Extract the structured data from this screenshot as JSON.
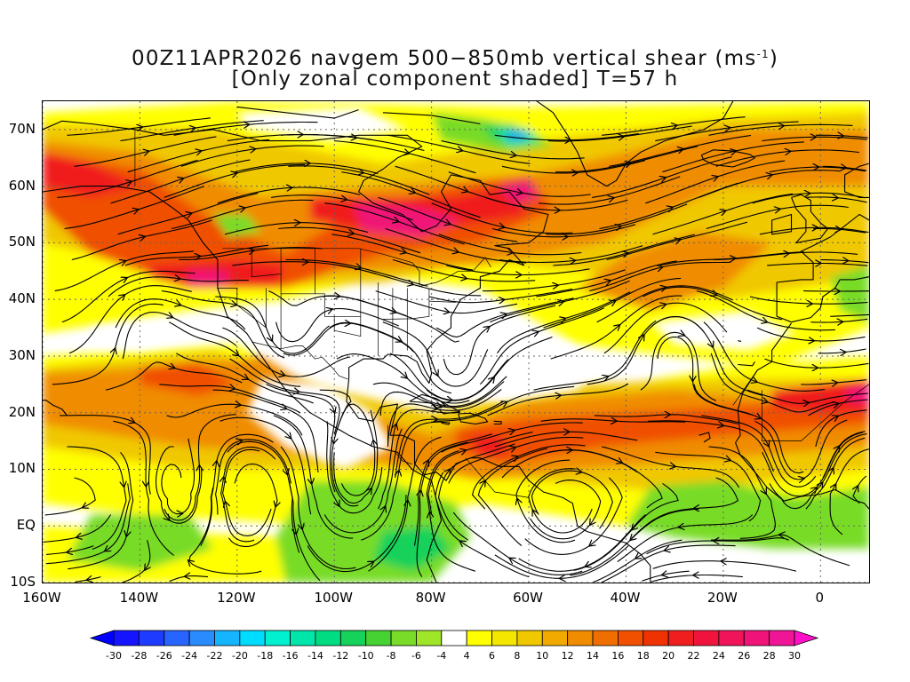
{
  "title": {
    "line1_prefix": "00Z11APR2026 navgem 500−850mb vertical shear (ms",
    "line1_sup": "-1",
    "line1_suffix": ")",
    "line2": "[Only zonal component shaded] T=57 h"
  },
  "axes": {
    "lat_labels": [
      {
        "text": "70N",
        "lat": 70
      },
      {
        "text": "60N",
        "lat": 60
      },
      {
        "text": "50N",
        "lat": 50
      },
      {
        "text": "40N",
        "lat": 40
      },
      {
        "text": "30N",
        "lat": 30
      },
      {
        "text": "20N",
        "lat": 20
      },
      {
        "text": "10N",
        "lat": 10
      },
      {
        "text": "EQ",
        "lat": 0
      },
      {
        "text": "10S",
        "lat": -10
      }
    ],
    "lon_labels": [
      {
        "text": "160W",
        "lon": -160
      },
      {
        "text": "140W",
        "lon": -140
      },
      {
        "text": "120W",
        "lon": -120
      },
      {
        "text": "100W",
        "lon": -100
      },
      {
        "text": "80W",
        "lon": -80
      },
      {
        "text": "60W",
        "lon": -60
      },
      {
        "text": "40W",
        "lon": -40
      },
      {
        "text": "20W",
        "lon": -20
      },
      {
        "text": "0",
        "lon": 0
      }
    ],
    "lon_range": [
      -160,
      10
    ],
    "lat_range": [
      -10,
      75
    ],
    "grid": "dotted"
  },
  "colorbar": {
    "labels": [
      "-30",
      "-28",
      "-26",
      "-24",
      "-22",
      "-20",
      "-18",
      "-16",
      "-14",
      "-12",
      "-10",
      "-8",
      "-6",
      "-4",
      "4",
      "6",
      "8",
      "10",
      "12",
      "14",
      "16",
      "18",
      "20",
      "22",
      "24",
      "26",
      "28",
      "30"
    ],
    "colors": [
      "#1414ff",
      "#1e3cff",
      "#2864ff",
      "#288cff",
      "#14b4ff",
      "#00dcff",
      "#00f0d0",
      "#00e6aa",
      "#00dc82",
      "#14d25a",
      "#46d232",
      "#78dc28",
      "#a0e628",
      "#ffffff",
      "#ffff00",
      "#f5e600",
      "#f0c800",
      "#f0aa00",
      "#f08c00",
      "#f06e00",
      "#f05000",
      "#f03200",
      "#f01e1e",
      "#f0143c",
      "#f0145a",
      "#f01478",
      "#f01496"
    ],
    "end_left": "#0000ff",
    "end_right": "#ff10c8"
  },
  "shading_colors": {
    "weak": "#ffff00",
    "light": "#f0c800",
    "medium": "#f08c00",
    "strong": "#f05000",
    "vstrong": "#f01e1e",
    "max": "#f01478",
    "neg_green": "#78dc28",
    "neg_mid": "#14d25a",
    "neg_cyan": "#00e6aa",
    "neg_blue": "#288cff"
  }
}
